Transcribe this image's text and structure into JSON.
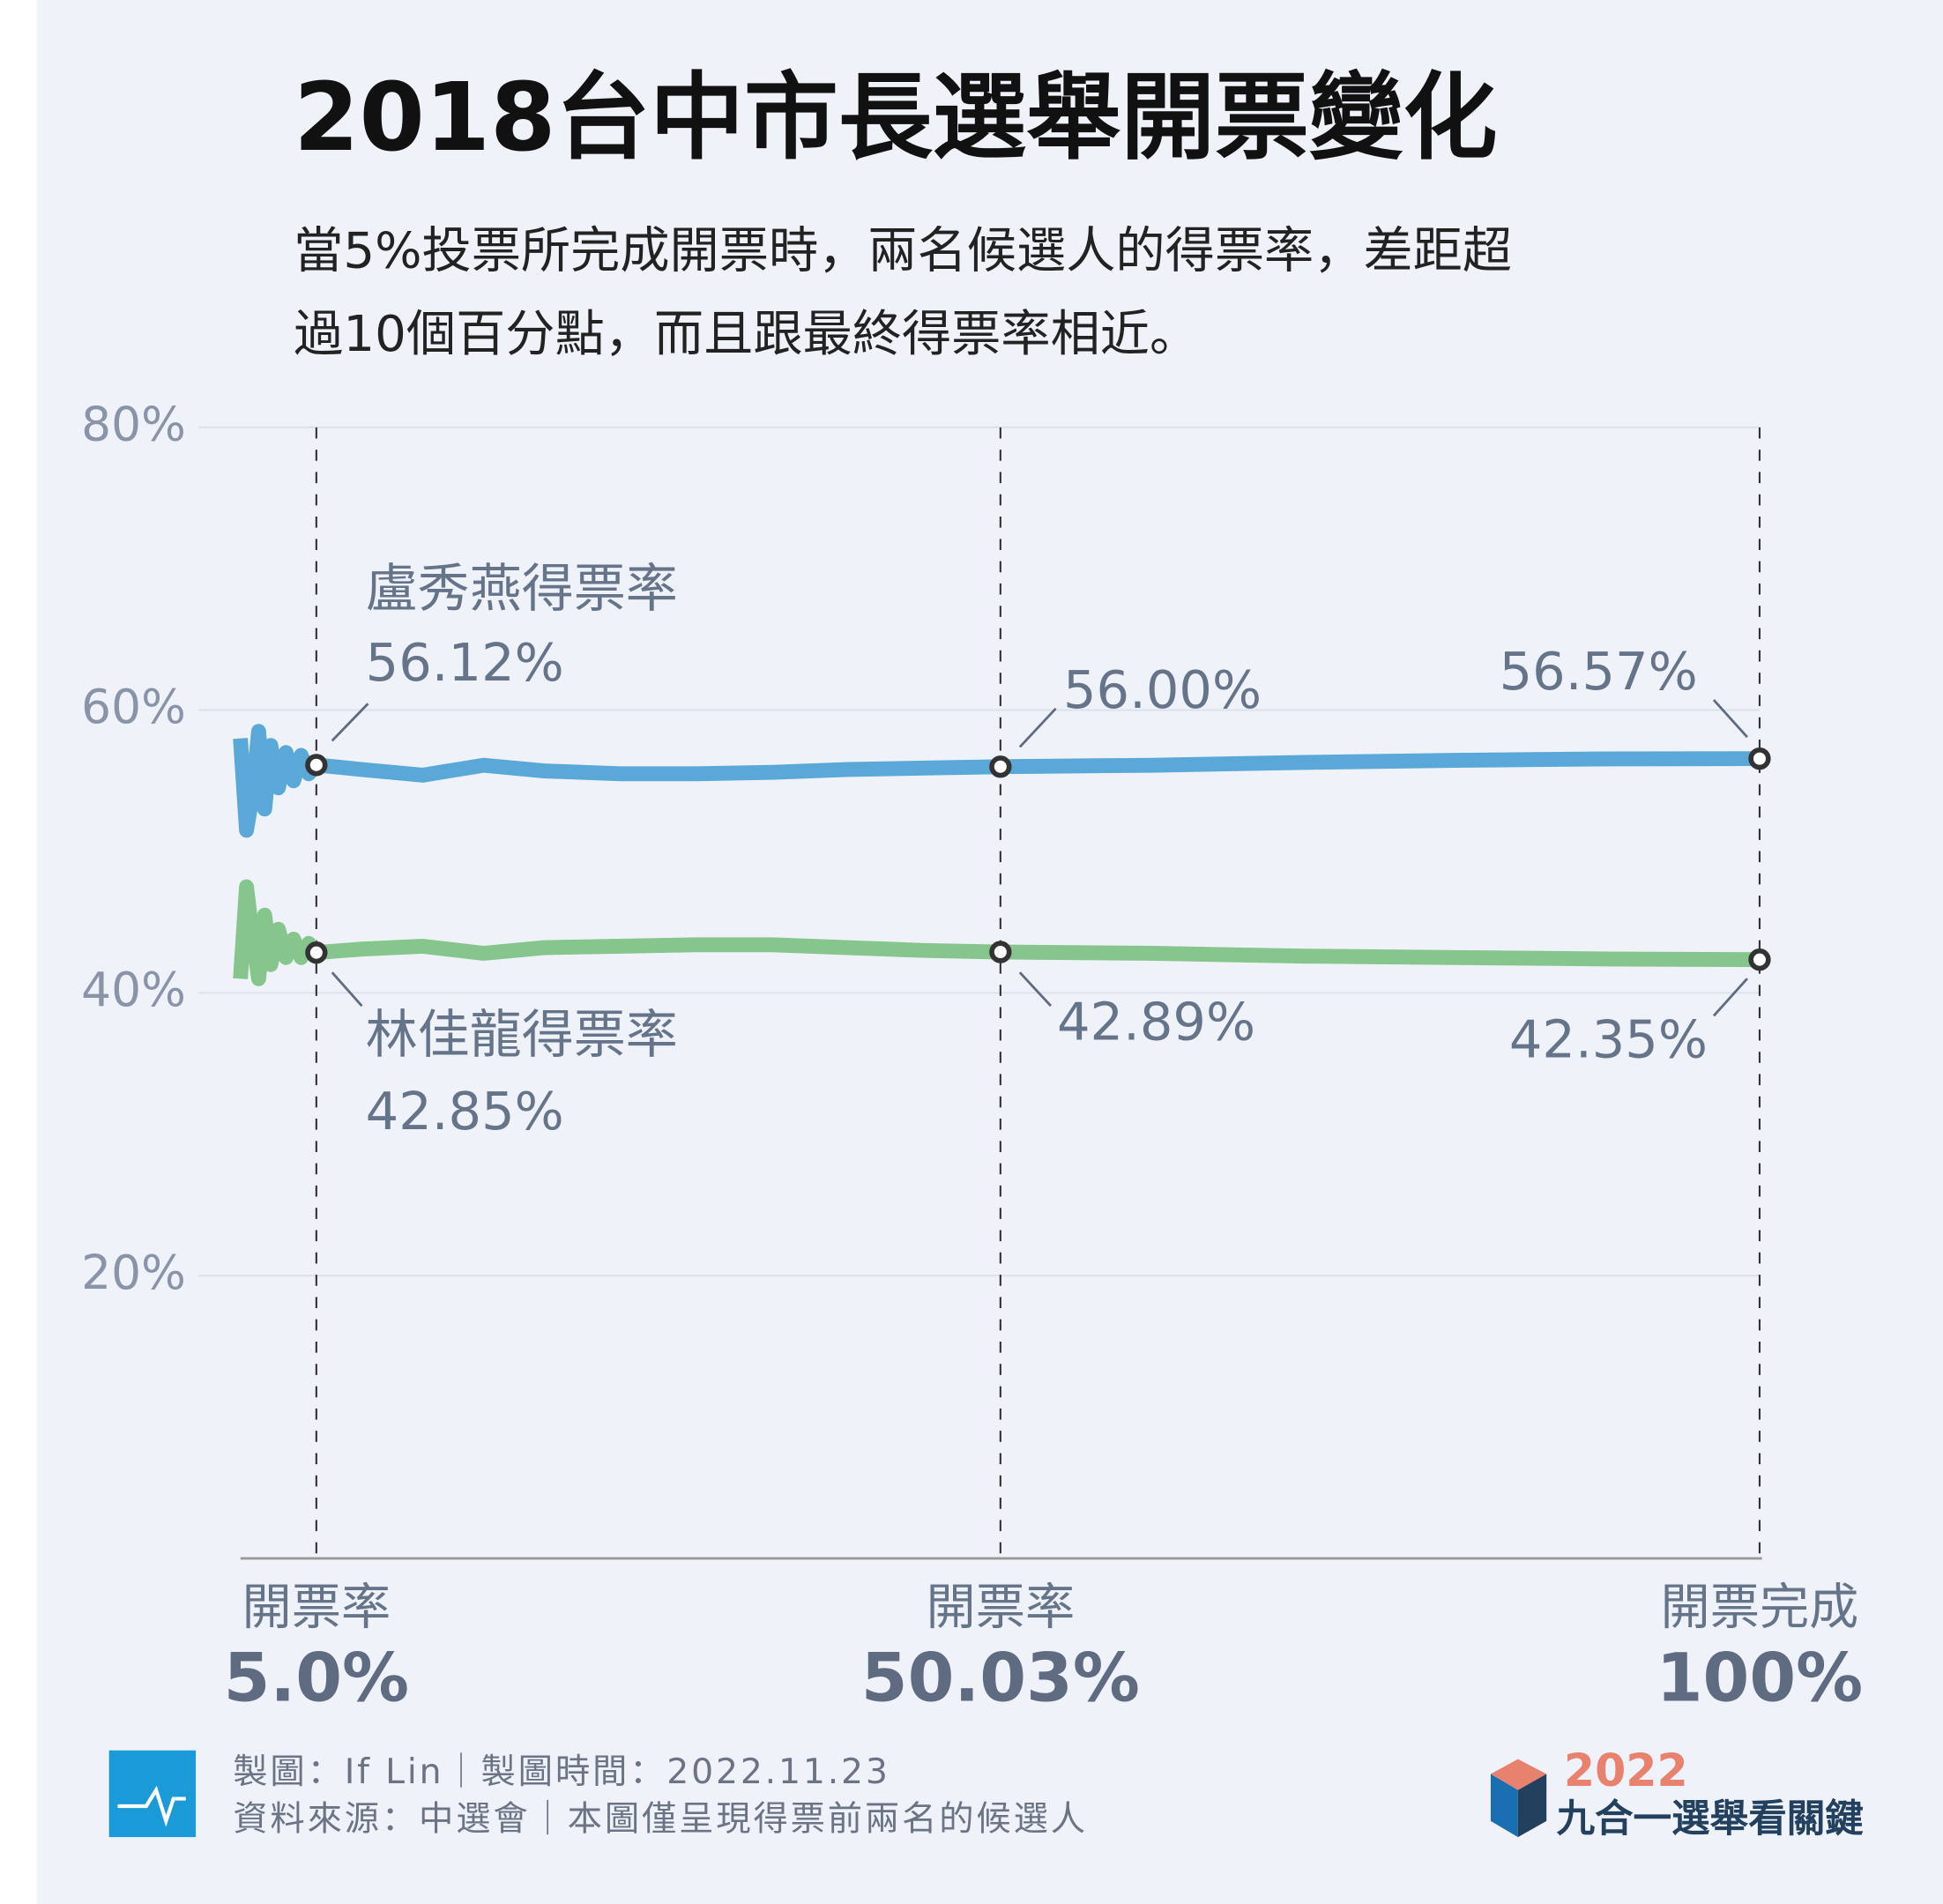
{
  "chart_data": {
    "type": "line",
    "title": "2018台中市長選舉開票變化",
    "subtitle": [
      "當5%投票所完成開票時，兩名候選人的得票率，差距超",
      "過10個百分點，而且跟最終得票率相近。"
    ],
    "x": [
      0,
      0.4,
      0.8,
      1.2,
      1.6,
      2,
      2.5,
      3,
      3.5,
      4,
      4.5,
      5,
      8,
      12,
      16,
      20,
      25,
      30,
      35,
      40,
      45,
      50.03,
      60,
      70,
      80,
      90,
      100
    ],
    "series": [
      {
        "name": "盧秀燕得票率",
        "color": "#5aa8d8",
        "values": [
          58,
          51.5,
          54,
          58.5,
          53,
          57.5,
          54.5,
          57,
          55,
          56.8,
          55.5,
          56.12,
          55.8,
          55.4,
          56.1,
          55.7,
          55.5,
          55.5,
          55.6,
          55.8,
          55.9,
          56.0,
          56.1,
          56.3,
          56.45,
          56.55,
          56.57
        ],
        "value_labels": [
          null,
          null,
          null,
          null,
          null,
          null,
          null,
          null,
          null,
          null,
          null,
          "56.12%",
          null,
          null,
          null,
          null,
          null,
          null,
          null,
          null,
          null,
          "56.00%",
          null,
          null,
          null,
          null,
          "56.57%"
        ]
      },
      {
        "name": "林佳龍得票率",
        "color": "#86c58b",
        "values": [
          41,
          47.5,
          44,
          41,
          45.5,
          42,
          44.5,
          42.5,
          43.8,
          42.5,
          43.5,
          42.85,
          43.1,
          43.3,
          42.8,
          43.2,
          43.3,
          43.4,
          43.4,
          43.2,
          43.0,
          42.89,
          42.8,
          42.6,
          42.5,
          42.4,
          42.35
        ],
        "value_labels": [
          null,
          null,
          null,
          null,
          null,
          null,
          null,
          null,
          null,
          null,
          null,
          "42.85%",
          null,
          null,
          null,
          null,
          null,
          null,
          null,
          null,
          null,
          "42.89%",
          null,
          null,
          null,
          null,
          "42.35%"
        ]
      }
    ],
    "xlim": [
      0,
      100
    ],
    "xticks": [
      {
        "value": 5,
        "label": "5.0%"
      },
      {
        "value": 50.03,
        "label": "50.03%"
      },
      {
        "value": 100,
        "label": "100%"
      }
    ],
    "xtick_captions": [
      "開票率",
      "開票率",
      "開票完成"
    ],
    "ylim": [
      0,
      80
    ],
    "yticks": [
      {
        "value": 20,
        "label": "20%"
      },
      {
        "value": 40,
        "label": "40%"
      },
      {
        "value": 60,
        "label": "60%"
      },
      {
        "value": 80,
        "label": "80%"
      }
    ],
    "grid": true
  },
  "footer": {
    "credit": "製圖：If Lin｜製圖時間：2022.11.23",
    "source": "資料來源：中選會｜本圖僅呈現得票前兩名的候選人",
    "logo_year": "2022",
    "logo_text": "九合一選舉看關鍵"
  }
}
